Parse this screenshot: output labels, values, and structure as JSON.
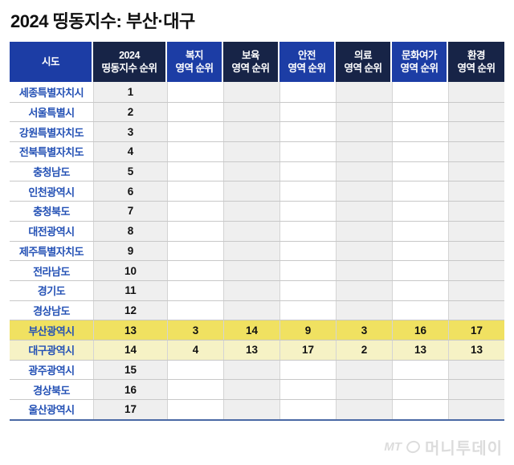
{
  "title": "2024 띵동지수: 부산·대구",
  "table": {
    "columns": [
      {
        "line1": "시도",
        "line2": ""
      },
      {
        "line1": "2024",
        "line2": "띵동지수 순위"
      },
      {
        "line1": "복지",
        "line2": "영역 순위"
      },
      {
        "line1": "보육",
        "line2": "영역 순위"
      },
      {
        "line1": "안전",
        "line2": "영역 순위"
      },
      {
        "line1": "의료",
        "line2": "영역 순위"
      },
      {
        "line1": "문화여가",
        "line2": "영역 순위"
      },
      {
        "line1": "환경",
        "line2": "영역 순위"
      }
    ],
    "rows": [
      {
        "region": "세종특별자치시",
        "values": [
          "1",
          "",
          "",
          "",
          "",
          "",
          ""
        ],
        "highlight": "none"
      },
      {
        "region": "서울특별시",
        "values": [
          "2",
          "",
          "",
          "",
          "",
          "",
          ""
        ],
        "highlight": "none"
      },
      {
        "region": "강원특별자치도",
        "values": [
          "3",
          "",
          "",
          "",
          "",
          "",
          ""
        ],
        "highlight": "none"
      },
      {
        "region": "전북특별자치도",
        "values": [
          "4",
          "",
          "",
          "",
          "",
          "",
          ""
        ],
        "highlight": "none"
      },
      {
        "region": "충청남도",
        "values": [
          "5",
          "",
          "",
          "",
          "",
          "",
          ""
        ],
        "highlight": "none"
      },
      {
        "region": "인천광역시",
        "values": [
          "6",
          "",
          "",
          "",
          "",
          "",
          ""
        ],
        "highlight": "none"
      },
      {
        "region": "충청북도",
        "values": [
          "7",
          "",
          "",
          "",
          "",
          "",
          ""
        ],
        "highlight": "none"
      },
      {
        "region": "대전광역시",
        "values": [
          "8",
          "",
          "",
          "",
          "",
          "",
          ""
        ],
        "highlight": "none"
      },
      {
        "region": "제주특별자치도",
        "values": [
          "9",
          "",
          "",
          "",
          "",
          "",
          ""
        ],
        "highlight": "none"
      },
      {
        "region": "전라남도",
        "values": [
          "10",
          "",
          "",
          "",
          "",
          "",
          ""
        ],
        "highlight": "none"
      },
      {
        "region": "경기도",
        "values": [
          "11",
          "",
          "",
          "",
          "",
          "",
          ""
        ],
        "highlight": "none"
      },
      {
        "region": "경상남도",
        "values": [
          "12",
          "",
          "",
          "",
          "",
          "",
          ""
        ],
        "highlight": "none"
      },
      {
        "region": "부산광역시",
        "values": [
          "13",
          "3",
          "14",
          "9",
          "3",
          "16",
          "17"
        ],
        "highlight": "strong"
      },
      {
        "region": "대구광역시",
        "values": [
          "14",
          "4",
          "13",
          "17",
          "2",
          "13",
          "13"
        ],
        "highlight": "soft"
      },
      {
        "region": "광주광역시",
        "values": [
          "15",
          "",
          "",
          "",
          "",
          "",
          ""
        ],
        "highlight": "none"
      },
      {
        "region": "경상북도",
        "values": [
          "16",
          "",
          "",
          "",
          "",
          "",
          ""
        ],
        "highlight": "none"
      },
      {
        "region": "울산광역시",
        "values": [
          "17",
          "",
          "",
          "",
          "",
          "",
          ""
        ],
        "highlight": "none"
      }
    ]
  },
  "colors": {
    "header_blue": "#1c3da5",
    "header_navy": "#172447",
    "column_gray": "#efefef",
    "region_text": "#2451b5",
    "busan_highlight": "#f0e161",
    "daegu_highlight": "#f6f2c5",
    "bottom_border": "#4a69a5"
  },
  "footer": {
    "mt": "MT",
    "brand": "머니투데이"
  }
}
